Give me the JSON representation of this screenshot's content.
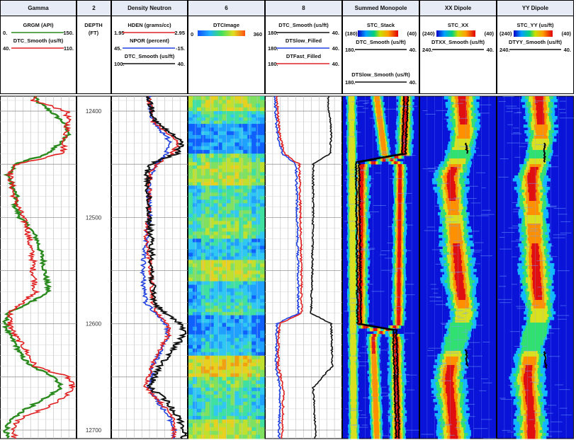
{
  "tracks": [
    {
      "key": "gamma",
      "title": "Gamma",
      "x0": 0,
      "x1": 108
    },
    {
      "key": "depth",
      "title": "2",
      "x0": 108,
      "x1": 157
    },
    {
      "key": "density",
      "title": "Density Neutron",
      "x0": 157,
      "x1": 265
    },
    {
      "key": "dtcimage",
      "title": "6",
      "x0": 265,
      "x1": 374
    },
    {
      "key": "sonic",
      "title": "8",
      "x0": 374,
      "x1": 483
    },
    {
      "key": "monopole",
      "title": "Summed Monopole",
      "x0": 483,
      "x1": 592
    },
    {
      "key": "xxdipole",
      "title": "XX Dipole",
      "x0": 592,
      "x1": 701
    },
    {
      "key": "yydipole",
      "title": "YY Dipole",
      "x0": 701,
      "x1": 810
    }
  ],
  "headers": {
    "gamma": [
      {
        "name": "GRGM (API)",
        "left": "0.",
        "right": "150.",
        "color": "#2a8a1e"
      },
      {
        "name": "DTC_Smooth (us/ft)",
        "left": "40.",
        "right": "110.",
        "color": "#e02020"
      }
    ],
    "depth": {
      "line1": "DEPTH",
      "line2": "(FT)"
    },
    "density": [
      {
        "name": "HDEN (grams/cc)",
        "left": "1.95",
        "right": "2.95",
        "color": "#e02020"
      },
      {
        "name": "NPOR (percent)",
        "left": "45.",
        "right": "-15.",
        "color": "#2040e0"
      },
      {
        "name": "DTC_Smooth (us/ft)",
        "left": "100.",
        "right": "40.",
        "color": "#111111"
      }
    ],
    "dtcimage": {
      "name": "DTCImage",
      "left": "0",
      "right": "360"
    },
    "sonic": [
      {
        "name": "DTC_Smooth (us/ft)",
        "left": "180.",
        "right": "40.",
        "color": "#111111"
      },
      {
        "name": "DTSlow_Filled",
        "left": "180.",
        "right": "40.",
        "color": "#2040e0"
      },
      {
        "name": "DTFast_Filled",
        "left": "180.",
        "right": "40.",
        "color": "#e02020"
      }
    ],
    "monopole": {
      "image": {
        "name": "STC_Stack",
        "left": "(180)",
        "right": "(40)"
      },
      "curves": [
        {
          "name": "DTC_Smooth (us/ft)",
          "left": "180.",
          "right": "40.",
          "color": "#111111"
        },
        {
          "name": "DTSlow_Smooth (us/ft)",
          "left": "180.",
          "right": "40.",
          "color": "#111111"
        }
      ]
    },
    "xxdipole": {
      "image": {
        "name": "STC_XX",
        "left": "(240)",
        "right": "(40)"
      },
      "curves": [
        {
          "name": "DTXX_Smooth (us/ft)",
          "left": "240.",
          "right": "40.",
          "color": "#111111"
        }
      ]
    },
    "yydipole": {
      "image": {
        "name": "STC_YY (us/ft)",
        "left": "(240)",
        "right": "(40)"
      },
      "curves": [
        {
          "name": "DTYY_Smooth (us/ft)",
          "left": "240.",
          "right": "40.",
          "color": "#111111"
        }
      ]
    }
  },
  "colors": {
    "header_fill": "#e6ebf5",
    "gamma": "#2a8a1e",
    "dtc": "#e02020",
    "npor": "#2040e0",
    "dark": "#111111",
    "grid": "#bbbbbb",
    "image_low": "#0000d0",
    "image_high": "#e01010"
  },
  "chart_data": {
    "type": "well-log",
    "depth_ticks": [
      "12400",
      "12500",
      "12600",
      "12700"
    ],
    "depth_range": [
      12386,
      12708
    ],
    "gamma": {
      "depth": [
        12390,
        12400,
        12410,
        12420,
        12430,
        12440,
        12450,
        12460,
        12470,
        12480,
        12490,
        12500,
        12510,
        12520,
        12530,
        12540,
        12550,
        12560,
        12570,
        12580,
        12590,
        12600,
        12610,
        12620,
        12630,
        12640,
        12650,
        12660,
        12670,
        12680,
        12690,
        12700
      ],
      "GRGM": [
        70,
        100,
        125,
        138,
        120,
        95,
        30,
        14,
        22,
        30,
        28,
        38,
        58,
        72,
        78,
        85,
        88,
        92,
        95,
        60,
        12,
        8,
        15,
        30,
        40,
        60,
        110,
        122,
        90,
        50,
        18,
        10
      ],
      "DTC_Smooth": [
        70,
        102,
        103,
        102,
        100,
        98,
        55,
        48,
        50,
        52,
        56,
        60,
        65,
        66,
        68,
        70,
        70,
        72,
        72,
        60,
        48,
        48,
        52,
        60,
        66,
        72,
        103,
        108,
        98,
        80,
        56,
        52
      ]
    },
    "density": {
      "depth": [
        12390,
        12410,
        12430,
        12440,
        12450,
        12460,
        12480,
        12500,
        12520,
        12540,
        12560,
        12580,
        12590,
        12600,
        12610,
        12620,
        12640,
        12660,
        12670,
        12690,
        12700
      ],
      "HDEN": [
        2.45,
        2.5,
        2.85,
        2.75,
        2.55,
        2.45,
        2.45,
        2.43,
        2.4,
        2.45,
        2.48,
        2.5,
        2.55,
        2.7,
        2.72,
        2.62,
        2.48,
        2.4,
        2.55,
        2.8,
        2.78
      ],
      "NPOR": [
        15,
        12,
        -3,
        2,
        10,
        14,
        16,
        15,
        18,
        20,
        20,
        18,
        10,
        2,
        0,
        4,
        12,
        15,
        10,
        -2,
        -5
      ],
      "DTC_Smooth": [
        70,
        65,
        43,
        48,
        70,
        72,
        71,
        70,
        69,
        68,
        68,
        66,
        58,
        44,
        42,
        48,
        62,
        70,
        58,
        45,
        42
      ]
    },
    "sonic": {
      "depth": [
        12390,
        12420,
        12440,
        12450,
        12500,
        12560,
        12590,
        12600,
        12640,
        12660,
        12700
      ],
      "DTC_Smooth": [
        64,
        58,
        60,
        92,
        92,
        94,
        96,
        58,
        56,
        92,
        88
      ],
      "DTSlow_Filled": [
        164,
        160,
        150,
        124,
        122,
        120,
        120,
        160,
        162,
        154,
        156
      ],
      "DTFast_Filled": [
        160,
        156,
        146,
        118,
        116,
        114,
        114,
        156,
        158,
        148,
        150
      ]
    },
    "dtcimage_hue_range": [
      0,
      360
    ],
    "monopole_range": [
      180,
      40
    ],
    "dipole_range": [
      240,
      40
    ]
  }
}
